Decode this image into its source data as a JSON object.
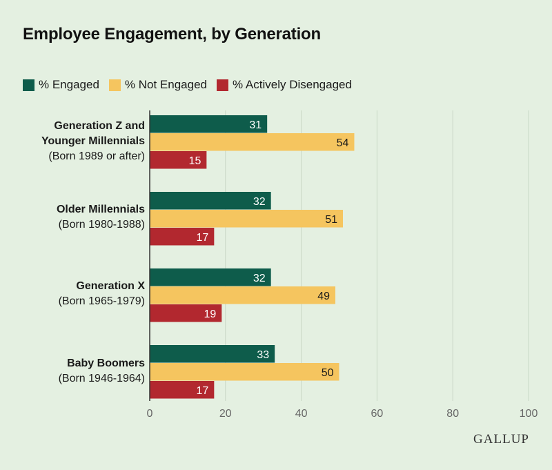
{
  "colors": {
    "engaged": "#0e5c4b",
    "not_engaged": "#f5c55f",
    "actively_disengaged": "#b2282f",
    "grid": "#c9d7c6",
    "axis": "#333333"
  },
  "chart_data": {
    "type": "bar",
    "orientation": "horizontal",
    "title": "Employee Engagement, by Generation",
    "categories": [
      {
        "name": "Generation Z and Younger Millennials",
        "name_lines": [
          "Generation Z and",
          "Younger Millennials"
        ],
        "sub": "(Born 1989 or after)"
      },
      {
        "name": "Older Millennials",
        "name_lines": [
          "Older Millennials"
        ],
        "sub": "(Born 1980-1988)"
      },
      {
        "name": "Generation X",
        "name_lines": [
          "Generation X"
        ],
        "sub": "(Born 1965-1979)"
      },
      {
        "name": "Baby Boomers",
        "name_lines": [
          "Baby Boomers"
        ],
        "sub": "(Born 1946-1964)"
      }
    ],
    "series": [
      {
        "name": "% Engaged",
        "key": "engaged",
        "values": [
          31,
          32,
          32,
          33
        ]
      },
      {
        "name": "% Not Engaged",
        "key": "not_engaged",
        "values": [
          54,
          51,
          49,
          50
        ]
      },
      {
        "name": "% Actively Disengaged",
        "key": "actively_disengaged",
        "values": [
          15,
          17,
          19,
          17
        ]
      }
    ],
    "xlim": [
      0,
      100
    ],
    "xticks": [
      0,
      20,
      40,
      60,
      80,
      100
    ],
    "grid": true,
    "legend_position": "top-left",
    "xlabel": "",
    "ylabel": ""
  },
  "source": {
    "logo_text": "GALLUP"
  }
}
